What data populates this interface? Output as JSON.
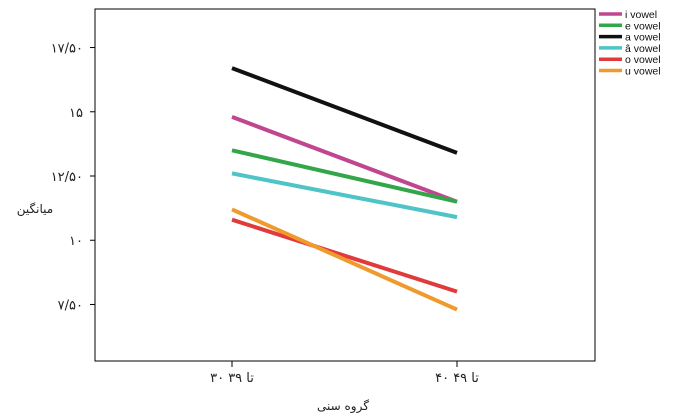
{
  "chart_data": {
    "type": "line",
    "xlabel": "گروه سنی",
    "ylabel": "میانگین",
    "categories": [
      "۳۰ تا ۳۹",
      "۴۰ تا ۴۹"
    ],
    "ylim": [
      5.3,
      19.0
    ],
    "yticks": [
      {
        "value": 7.5,
        "label": "۷/۵۰"
      },
      {
        "value": 10,
        "label": "۱۰"
      },
      {
        "value": 12.5,
        "label": "۱۲/۵۰"
      },
      {
        "value": 15,
        "label": "۱۵"
      },
      {
        "value": 17.5,
        "label": "۱۷/۵۰"
      }
    ],
    "grid": false,
    "legend_position": "top-right",
    "series": [
      {
        "name": "i vowel",
        "color": "#c0478f",
        "values": [
          14.8,
          11.5
        ]
      },
      {
        "name": "e vowel",
        "color": "#34a64a",
        "values": [
          13.5,
          11.5
        ]
      },
      {
        "name": "a vowel",
        "color": "#111111",
        "values": [
          16.7,
          13.4
        ]
      },
      {
        "name": "â vowel",
        "color": "#4ec4c8",
        "values": [
          12.6,
          10.9
        ]
      },
      {
        "name": "o vowel",
        "color": "#e03a3a",
        "values": [
          10.8,
          8.0
        ]
      },
      {
        "name": "u vowel",
        "color": "#f09a2e",
        "values": [
          11.2,
          7.3
        ]
      }
    ]
  }
}
